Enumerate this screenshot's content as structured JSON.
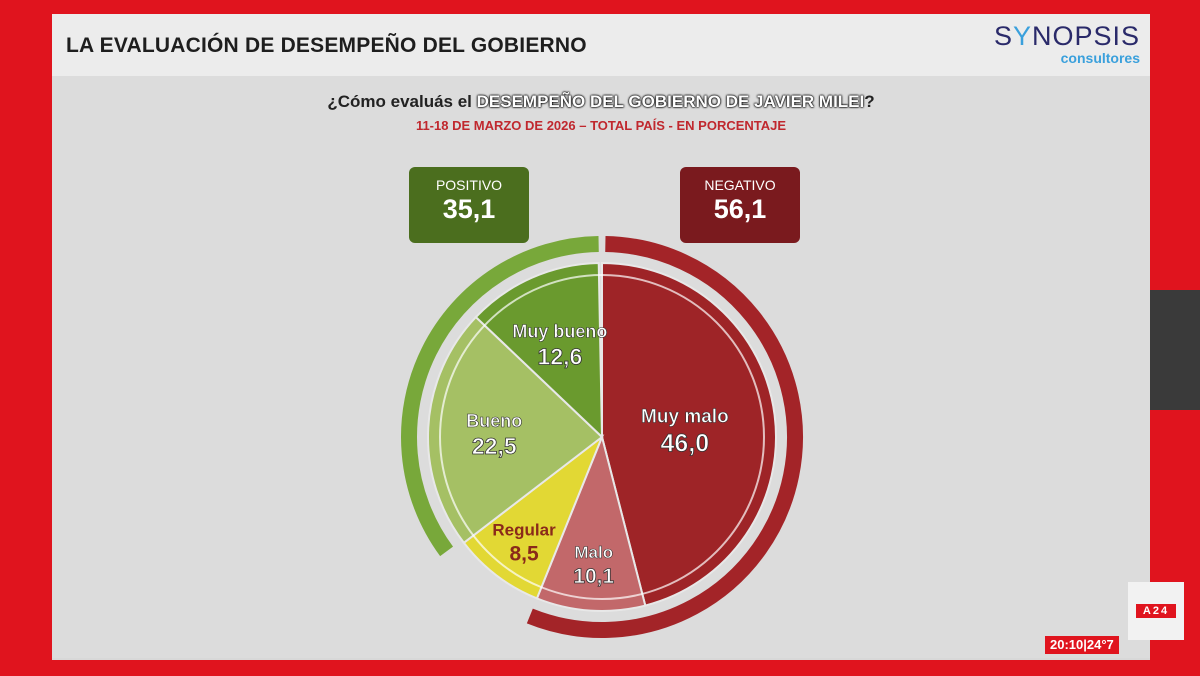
{
  "slide": {
    "title": "LA EVALUACIÓN DE DESEMPEÑO DEL GOBIERNO",
    "logo_main_pre": "S",
    "logo_main_y": "Y",
    "logo_main_post": "NOPSIS",
    "logo_sub": "consultores",
    "question_pre": "¿Cómo evaluás el ",
    "question_highlight": "DESEMPEÑO DEL GOBIERNO DE JAVIER MILEI",
    "question_post": "?",
    "subtitle": "11-18 DE MARZO DE 2026 – TOTAL PAÍS - EN PORCENTAJE"
  },
  "summary": {
    "positive_label": "POSITIVO",
    "positive_value": "35,1",
    "negative_label": "NEGATIVO",
    "negative_value": "56,1"
  },
  "broadcast": {
    "channel": "A24",
    "clock": "20:10|24°7"
  },
  "colors": {
    "muy_malo": "#9e2427",
    "malo": "#c2686a",
    "regular": "#e2d834",
    "bueno": "#a5c064",
    "muy_bueno": "#6a9a2e",
    "positive_arc": "#78a83a",
    "negative_arc": "#a32428"
  },
  "chart_data": {
    "type": "pie",
    "slices": [
      {
        "label": "Muy malo",
        "value": 46.0,
        "display": "46,0",
        "color": "#9e2427",
        "text_color": "#ffffff"
      },
      {
        "label": "Malo",
        "value": 10.1,
        "display": "10,1",
        "color": "#c2686a",
        "text_color": "#ffffff"
      },
      {
        "label": "Regular",
        "value": 8.5,
        "display": "8,5",
        "color": "#e2d834",
        "text_color": "#8a2a1a"
      },
      {
        "label": "Bueno",
        "value": 22.5,
        "display": "22,5",
        "color": "#a5c064",
        "text_color": "#ffffff"
      },
      {
        "label": "Muy bueno",
        "value": 12.6,
        "display": "12,6",
        "color": "#6a9a2e",
        "text_color": "#ffffff"
      }
    ],
    "groups": [
      {
        "label": "POSITIVO",
        "value": 35.1,
        "color": "#78a83a"
      },
      {
        "label": "NEGATIVO",
        "value": 56.1,
        "color": "#a32428"
      }
    ]
  }
}
